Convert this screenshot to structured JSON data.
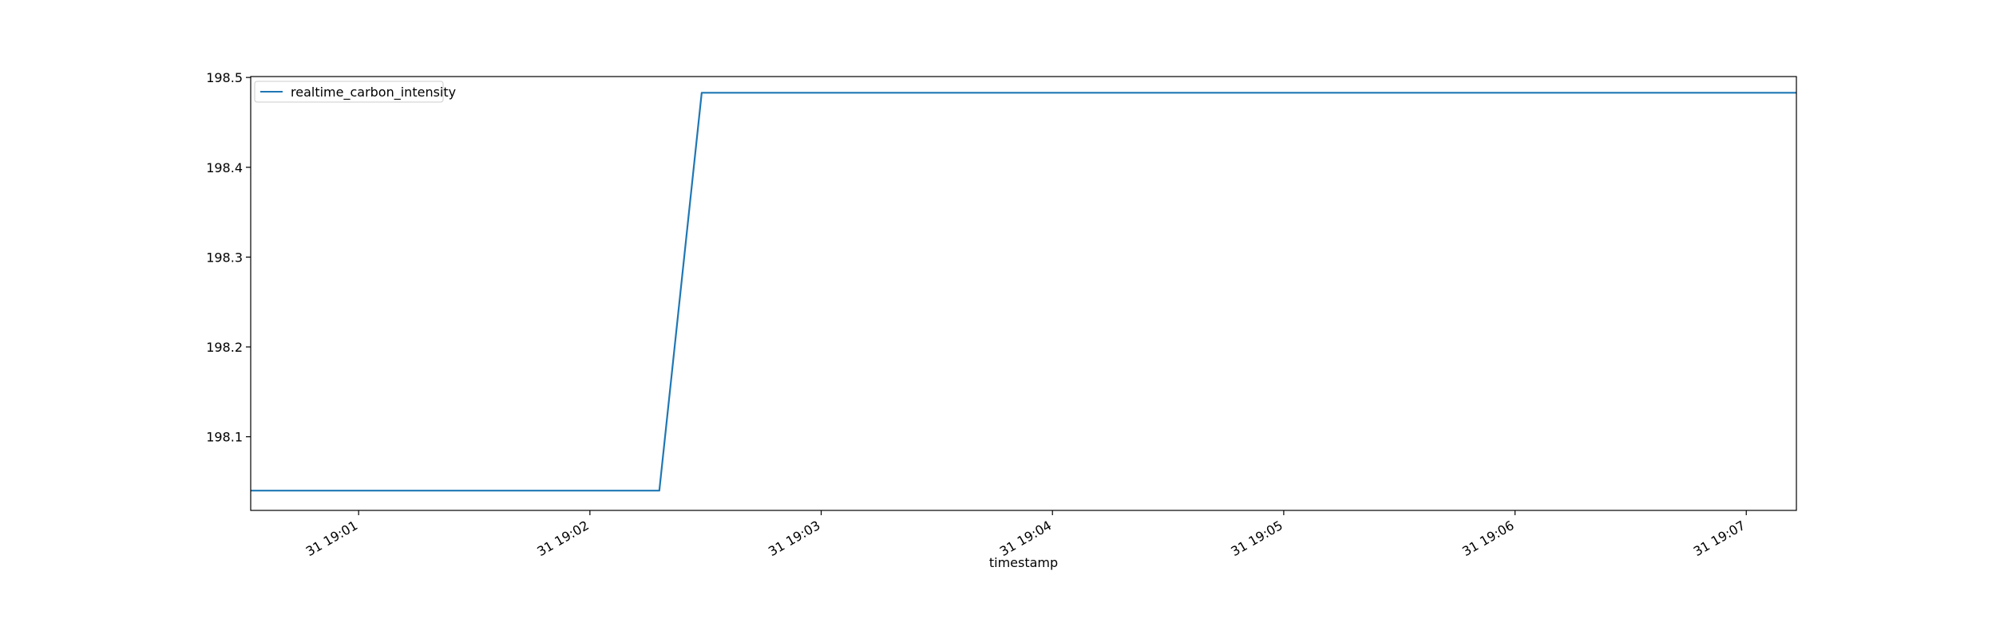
{
  "chart_data": {
    "type": "line",
    "title": "",
    "xlabel": "timestamp",
    "ylabel": "",
    "x_ticks": [
      "31 19:01",
      "31 19:02",
      "31 19:03",
      "31 19:04",
      "31 19:05",
      "31 19:06",
      "31 19:07"
    ],
    "y_ticks": [
      "198.1",
      "198.2",
      "198.3",
      "198.4",
      "198.5"
    ],
    "xlim": [
      "19:00:32",
      "19:07:13"
    ],
    "ylim": [
      198.018,
      198.501
    ],
    "grid": false,
    "legend_position": "upper-left",
    "series": [
      {
        "name": "realtime_carbon_intensity",
        "color": "#1f77b4",
        "points": [
          {
            "x": "19:00:32",
            "y": 198.04
          },
          {
            "x": "19:02:18",
            "y": 198.04
          },
          {
            "x": "19:02:29",
            "y": 198.483
          },
          {
            "x": "19:07:13",
            "y": 198.483
          }
        ]
      }
    ]
  }
}
